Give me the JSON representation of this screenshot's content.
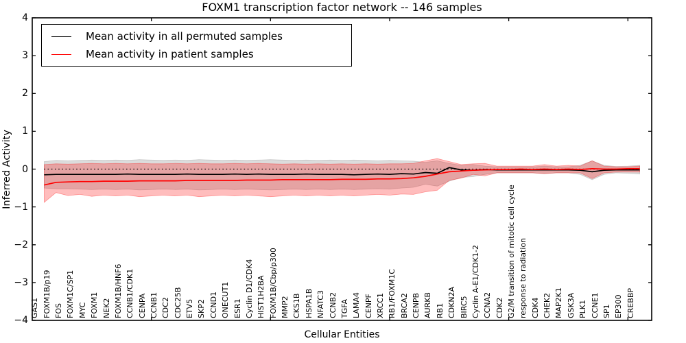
{
  "chart_data": {
    "type": "line",
    "title": "FOXM1 transcription factor network -- 146 samples",
    "xlabel": "Cellular Entities",
    "ylabel": "Inferred Activity",
    "ylim": [
      -4,
      4
    ],
    "xlim": [
      0,
      52
    ],
    "grid": false,
    "legend_position": "upper left",
    "ytick_labels": [
      "4",
      "3",
      "2",
      "1",
      "0",
      "−1",
      "−2",
      "−3",
      "−4"
    ],
    "ytick_values": [
      4,
      3,
      2,
      1,
      0,
      -1,
      -2,
      -3,
      -4
    ],
    "xtick_major_values": [
      10,
      20,
      30,
      40,
      50
    ],
    "zero_reference_line": {
      "y": 0,
      "style": "dotted",
      "color": "#000000"
    },
    "categories": [
      "GAS1",
      "FOXM1B/p19",
      "FOS",
      "FOXM1C/SP1",
      "MYC",
      "FOXM1",
      "NEK2",
      "FOXM1B/HNF6",
      "CCNB1/CDK1",
      "CENPA",
      "CCNB1",
      "CDC2",
      "CDC25B",
      "ETV5",
      "SKP2",
      "CCND1",
      "ONECUT1",
      "ESR1",
      "Cyclin D1/CDK4",
      "HIST1H2BA",
      "FOXM1B/Cbp/p300",
      "MMP2",
      "CKS1B",
      "HSPA1B",
      "NFATC3",
      "CCNB2",
      "TGFA",
      "LAMA4",
      "CENPF",
      "XRCC1",
      "RB1/FOXM1C",
      "BRCA2",
      "CENPB",
      "AURKB",
      "RB1",
      "CDKN2A",
      "BIRC5",
      "Cyclin A-E1/CDK1-2",
      "CCNA2",
      "CDK2",
      "G2/M transition of mitotic cell cycle",
      "response to radiation",
      "CDK4",
      "CHEK2",
      "MAP2K1",
      "GSK3A",
      "PLK1",
      "CCNE1",
      "SP1",
      "EP300",
      "CREBBP"
    ],
    "legend": [
      {
        "label": "Mean activity in all permuted samples",
        "color": "#000000"
      },
      {
        "label": "Mean activity in patient samples",
        "color": "#ff0000"
      }
    ],
    "series": [
      {
        "name": "Mean activity in all permuted samples",
        "color": "#000000",
        "values": [
          -0.15,
          -0.14,
          -0.14,
          -0.14,
          -0.14,
          -0.14,
          -0.14,
          -0.13,
          -0.14,
          -0.14,
          -0.14,
          -0.14,
          -0.13,
          -0.14,
          -0.14,
          -0.14,
          -0.13,
          -0.14,
          -0.13,
          -0.14,
          -0.14,
          -0.14,
          -0.13,
          -0.14,
          -0.14,
          -0.14,
          -0.15,
          -0.14,
          -0.13,
          -0.14,
          -0.12,
          -0.13,
          -0.09,
          -0.11,
          0.04,
          -0.02,
          -0.03,
          -0.01,
          -0.02,
          -0.02,
          -0.02,
          -0.02,
          -0.02,
          -0.02,
          -0.02,
          -0.03,
          -0.07,
          -0.03,
          -0.02,
          -0.02,
          -0.02
        ]
      },
      {
        "name": "Mean activity in patient samples",
        "color": "#ff0000",
        "values": [
          -0.42,
          -0.35,
          -0.34,
          -0.33,
          -0.33,
          -0.32,
          -0.32,
          -0.32,
          -0.31,
          -0.31,
          -0.31,
          -0.31,
          -0.3,
          -0.3,
          -0.3,
          -0.3,
          -0.3,
          -0.29,
          -0.29,
          -0.29,
          -0.28,
          -0.28,
          -0.28,
          -0.28,
          -0.28,
          -0.27,
          -0.27,
          -0.27,
          -0.26,
          -0.26,
          -0.25,
          -0.23,
          -0.19,
          -0.13,
          -0.07,
          -0.05,
          -0.03,
          -0.02,
          -0.01,
          -0.01,
          0.0,
          -0.01,
          0.0,
          -0.01,
          0.0,
          -0.01,
          0.01,
          0.0,
          0.0,
          0.01,
          0.01
        ]
      }
    ],
    "bands": [
      {
        "name": "permuted-samples-range",
        "fill": "rgba(130,130,130,0.28)",
        "edge": "rgba(130,130,130,0.35)",
        "upper": [
          0.2,
          0.23,
          0.22,
          0.23,
          0.24,
          0.23,
          0.24,
          0.23,
          0.25,
          0.24,
          0.23,
          0.24,
          0.23,
          0.25,
          0.24,
          0.23,
          0.24,
          0.23,
          0.24,
          0.25,
          0.24,
          0.23,
          0.24,
          0.23,
          0.24,
          0.23,
          0.24,
          0.23,
          0.22,
          0.23,
          0.22,
          0.21,
          0.18,
          0.22,
          0.15,
          0.1,
          0.12,
          0.08,
          0.06,
          0.06,
          0.06,
          0.06,
          0.08,
          0.06,
          0.06,
          0.1,
          0.22,
          0.1,
          0.07,
          0.08,
          0.1
        ],
        "lower": [
          -0.5,
          -0.52,
          -0.52,
          -0.53,
          -0.54,
          -0.53,
          -0.54,
          -0.53,
          -0.55,
          -0.54,
          -0.53,
          -0.54,
          -0.53,
          -0.55,
          -0.54,
          -0.53,
          -0.54,
          -0.53,
          -0.54,
          -0.55,
          -0.54,
          -0.53,
          -0.54,
          -0.53,
          -0.54,
          -0.53,
          -0.54,
          -0.53,
          -0.52,
          -0.53,
          -0.5,
          -0.48,
          -0.4,
          -0.45,
          -0.32,
          -0.22,
          -0.2,
          -0.14,
          -0.1,
          -0.1,
          -0.1,
          -0.1,
          -0.12,
          -0.1,
          -0.1,
          -0.14,
          -0.28,
          -0.14,
          -0.1,
          -0.11,
          -0.13
        ]
      },
      {
        "name": "patient-samples-range",
        "fill": "rgba(255,0,0,0.26)",
        "edge": "rgba(255,0,0,0.35)",
        "upper": [
          0.12,
          0.14,
          0.13,
          0.14,
          0.15,
          0.14,
          0.15,
          0.14,
          0.15,
          0.14,
          0.14,
          0.15,
          0.14,
          0.15,
          0.14,
          0.14,
          0.15,
          0.14,
          0.15,
          0.14,
          0.13,
          0.14,
          0.13,
          0.14,
          0.13,
          0.14,
          0.13,
          0.14,
          0.13,
          0.14,
          0.14,
          0.15,
          0.22,
          0.28,
          0.2,
          0.12,
          0.14,
          0.15,
          0.08,
          0.08,
          0.08,
          0.08,
          0.12,
          0.08,
          0.1,
          0.08,
          0.22,
          0.08,
          0.06,
          0.06,
          0.08
        ],
        "lower": [
          -0.88,
          -0.62,
          -0.7,
          -0.67,
          -0.72,
          -0.69,
          -0.71,
          -0.69,
          -0.73,
          -0.71,
          -0.69,
          -0.71,
          -0.69,
          -0.73,
          -0.71,
          -0.69,
          -0.71,
          -0.69,
          -0.71,
          -0.73,
          -0.71,
          -0.69,
          -0.71,
          -0.69,
          -0.71,
          -0.69,
          -0.71,
          -0.69,
          -0.67,
          -0.69,
          -0.66,
          -0.67,
          -0.6,
          -0.56,
          -0.3,
          -0.24,
          -0.14,
          -0.18,
          -0.1,
          -0.1,
          -0.1,
          -0.1,
          -0.12,
          -0.1,
          -0.1,
          -0.1,
          -0.25,
          -0.1,
          -0.08,
          -0.08,
          -0.08
        ]
      }
    ]
  }
}
